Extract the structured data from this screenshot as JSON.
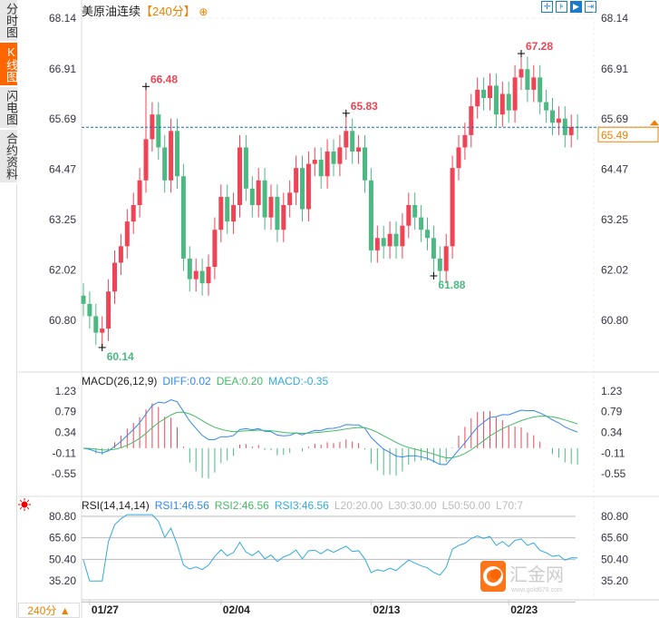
{
  "sidebar": {
    "items": [
      {
        "label": "分时图",
        "active": false
      },
      {
        "label": "K线图",
        "active": true
      },
      {
        "label": "闪电图",
        "active": false
      },
      {
        "label": "合约资料",
        "active": false
      }
    ]
  },
  "header": {
    "symbol": "美原油连续",
    "period": "【240分】",
    "add_icon": "circle-plus-icon"
  },
  "toolbar": [
    "crosshair-icon",
    "range-icon",
    "play-icon",
    "jump-end-icon"
  ],
  "colors": {
    "up": "#ee4455",
    "down": "#4cb882",
    "diff": "#3388ee",
    "dea": "#44bb66",
    "rsi": "#33aadd",
    "current": "#f08000",
    "accent": "#ff6600"
  },
  "price_axis": {
    "ticks": [
      "68.14",
      "66.91",
      "65.69",
      "64.47",
      "63.25",
      "62.02",
      "60.80"
    ],
    "current": "65.49"
  },
  "macd": {
    "label": "MACD(26,12,9)",
    "diff": "DIFF:0.02",
    "dea": "DEA:0.20",
    "macd": "MACD:-0.35",
    "ticks": [
      "1.23",
      "0.79",
      "0.34",
      "-0.11",
      "-0.55"
    ]
  },
  "rsi": {
    "label": "RSI(14,14,14)",
    "rsi1": "RSI1:46.56",
    "rsi2": "RSI2:46.56",
    "rsi3": "RSI3:46.56",
    "l20": "L20:20.00",
    "l30": "L30:30.00",
    "l50": "L50:50.00",
    "l70": "L70:7",
    "ticks": [
      "80.80",
      "65.60",
      "50.40",
      "35.20"
    ]
  },
  "date_axis": [
    "01/27",
    "02/04",
    "02/13",
    "02/23"
  ],
  "bottom": {
    "period": "240分 ▲"
  },
  "watermark": {
    "name": "汇金网",
    "url": "www.gold678.com"
  },
  "chart_data": {
    "type": "candlestick",
    "close": [
      61.2,
      60.9,
      60.5,
      60.6,
      61.5,
      62.2,
      62.6,
      63.2,
      63.6,
      64.2,
      65.2,
      65.8,
      65.0,
      64.2,
      65.4,
      64.3,
      62.3,
      61.8,
      62.0,
      61.7,
      62.1,
      63.0,
      63.8,
      63.2,
      63.6,
      65.0,
      64.0,
      63.6,
      64.2,
      63.3,
      63.8,
      63.0,
      63.6,
      63.9,
      64.5,
      63.5,
      64.6,
      64.7,
      64.3,
      64.9,
      64.6,
      65.0,
      65.4,
      64.9,
      65.0,
      64.2,
      62.5,
      62.8,
      62.6,
      62.9,
      62.6,
      63.1,
      63.6,
      63.3,
      63.0,
      62.8,
      62.3,
      62.0,
      62.6,
      64.5,
      65.0,
      65.3,
      66.0,
      66.4,
      66.2,
      66.5,
      65.8,
      66.3,
      65.9,
      66.7,
      66.9,
      66.4,
      66.7,
      66.1,
      65.9,
      65.6,
      65.7,
      65.3,
      65.5,
      65.49
    ],
    "annotations": [
      {
        "index": 3,
        "value": "60.14",
        "type": "low"
      },
      {
        "index": 10,
        "value": "66.48",
        "type": "high"
      },
      {
        "index": 42,
        "value": "65.83",
        "type": "high"
      },
      {
        "index": 56,
        "value": "61.88",
        "type": "low"
      },
      {
        "index": 70,
        "value": "67.28",
        "type": "high"
      }
    ],
    "ylim": [
      59.54,
      68.5
    ],
    "date_ticks": [
      {
        "index": 1,
        "label": "01/27"
      },
      {
        "index": 22,
        "label": "02/04"
      },
      {
        "index": 46,
        "label": "02/13"
      },
      {
        "index": 68,
        "label": "02/23"
      }
    ]
  }
}
